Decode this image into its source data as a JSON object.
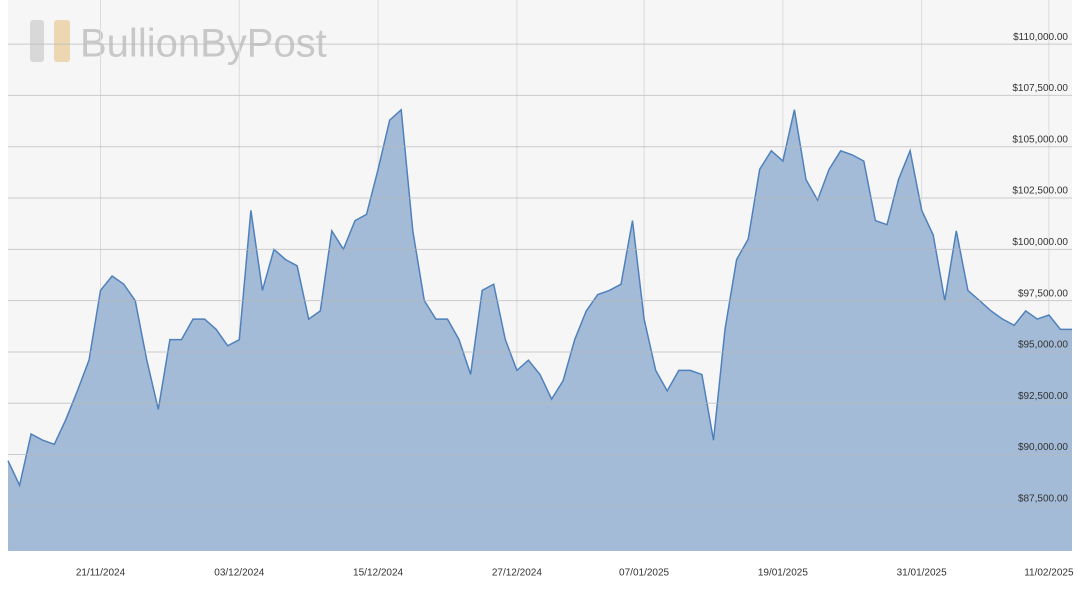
{
  "chart_data": {
    "type": "area",
    "watermark": "BullionByPost",
    "x": [
      "13/11/2024",
      "14/11/2024",
      "15/11/2024",
      "16/11/2024",
      "17/11/2024",
      "18/11/2024",
      "19/11/2024",
      "20/11/2024",
      "21/11/2024",
      "22/11/2024",
      "23/11/2024",
      "24/11/2024",
      "25/11/2024",
      "26/11/2024",
      "27/11/2024",
      "28/11/2024",
      "29/11/2024",
      "30/11/2024",
      "01/12/2024",
      "02/12/2024",
      "03/12/2024",
      "04/12/2024",
      "05/12/2024",
      "06/12/2024",
      "07/12/2024",
      "08/12/2024",
      "09/12/2024",
      "10/12/2024",
      "11/12/2024",
      "12/12/2024",
      "13/12/2024",
      "14/12/2024",
      "15/12/2024",
      "16/12/2024",
      "17/12/2024",
      "18/12/2024",
      "19/12/2024",
      "20/12/2024",
      "21/12/2024",
      "22/12/2024",
      "23/12/2024",
      "24/12/2024",
      "25/12/2024",
      "26/12/2024",
      "27/12/2024",
      "28/12/2024",
      "29/12/2024",
      "30/12/2024",
      "31/12/2024",
      "01/01/2025",
      "02/01/2025",
      "03/01/2025",
      "04/01/2025",
      "05/01/2025",
      "06/01/2025",
      "07/01/2025",
      "08/01/2025",
      "09/01/2025",
      "10/01/2025",
      "11/01/2025",
      "12/01/2025",
      "13/01/2025",
      "14/01/2025",
      "15/01/2025",
      "16/01/2025",
      "17/01/2025",
      "18/01/2025",
      "19/01/2025",
      "20/01/2025",
      "21/01/2025",
      "22/01/2025",
      "23/01/2025",
      "24/01/2025",
      "25/01/2025",
      "26/01/2025",
      "27/01/2025",
      "28/01/2025",
      "29/01/2025",
      "30/01/2025",
      "31/01/2025",
      "01/02/2025",
      "02/02/2025",
      "03/02/2025",
      "04/02/2025",
      "05/02/2025",
      "06/02/2025",
      "07/02/2025",
      "08/02/2025",
      "09/02/2025",
      "10/02/2025",
      "11/02/2025",
      "12/02/2025",
      "13/02/2025"
    ],
    "series": [
      {
        "color": "#4f81bd",
        "fill": "#a3bbd6",
        "values": [
          89700,
          88500,
          91000,
          90700,
          90500,
          91700,
          93100,
          94600,
          98000,
          98700,
          98300,
          97500,
          94600,
          92200,
          95600,
          95600,
          96600,
          96600,
          96100,
          95300,
          95600,
          101900,
          98000,
          100000,
          99500,
          99200,
          96600,
          97000,
          100900,
          100000,
          101400,
          101700,
          103900,
          106300,
          106800,
          100900,
          97500,
          96600,
          96600,
          95600,
          93900,
          98000,
          98300,
          95600,
          94100,
          94600,
          93900,
          92700,
          93600,
          95600,
          97000,
          97800,
          98000,
          98300,
          101400,
          96600,
          94100,
          93100,
          94100,
          94100,
          93900,
          90700,
          96100,
          99500,
          100500,
          103900,
          104800,
          104300,
          106800,
          103400,
          102400,
          103900,
          104800,
          104600,
          104300,
          101400,
          101200,
          103400,
          104800,
          101900,
          100700,
          97500,
          100900,
          98000,
          97500,
          97000,
          96600,
          96300,
          97000,
          96600,
          96800,
          96100,
          96100
        ]
      }
    ],
    "xlim": [
      "13/11/2024",
      "13/02/2025"
    ],
    "xticks": [
      "21/11/2024",
      "03/12/2024",
      "15/12/2024",
      "27/12/2024",
      "07/01/2025",
      "19/01/2025",
      "31/01/2025",
      "11/02/2025"
    ],
    "ylim": [
      85300,
      112150
    ],
    "yticks": [
      {
        "value": 87500,
        "label": "$87,500.00"
      },
      {
        "value": 90000,
        "label": "$90,000.00"
      },
      {
        "value": 92500,
        "label": "$92,500.00"
      },
      {
        "value": 95000,
        "label": "$95,000.00"
      },
      {
        "value": 97500,
        "label": "$97,500.00"
      },
      {
        "value": 100000,
        "label": "$100,000.00"
      },
      {
        "value": 102500,
        "label": "$102,500.00"
      },
      {
        "value": 105000,
        "label": "$105,000.00"
      },
      {
        "value": 107500,
        "label": "$107,500.00"
      },
      {
        "value": 110000,
        "label": "$110,000.00"
      }
    ],
    "grid": true
  }
}
